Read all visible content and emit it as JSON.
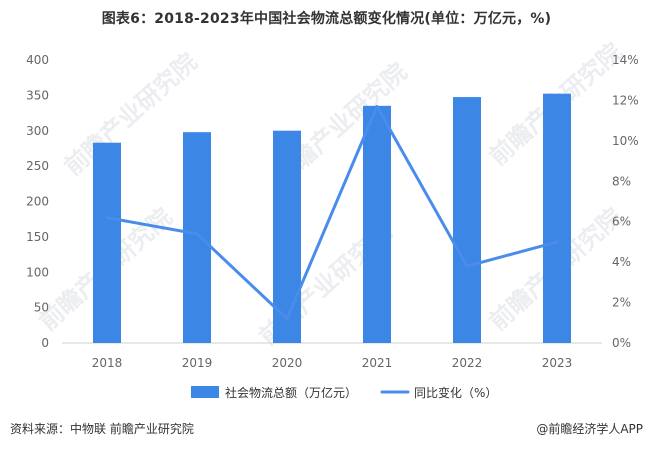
{
  "title": "图表6：2018-2023年中国社会物流总额变化情况(单位：万亿元，%)",
  "footer": {
    "source": "资料来源：中物联 前瞻产业研究院",
    "brand": "@前瞻经济学人APP"
  },
  "watermark": {
    "text": "前瞻产业研究院"
  },
  "colors": {
    "bar": "#3C86E6",
    "line": "#4A8CEB",
    "axis_text": "#666666",
    "axis_line": "#D0D0D0"
  },
  "chart_data": {
    "type": "bar",
    "title": "图表6：2018-2023年中国社会物流总额变化情况(单位：万亿元，%)",
    "categories": [
      "2018",
      "2019",
      "2020",
      "2021",
      "2022",
      "2023"
    ],
    "series": [
      {
        "name": "社会物流总额（万亿元）",
        "type": "bar",
        "axis": "left",
        "values": [
          283.1,
          298.0,
          300.1,
          335.2,
          347.6,
          352.4
        ]
      },
      {
        "name": "同比变化（%）",
        "type": "line",
        "axis": "right",
        "values": [
          6.2,
          5.4,
          1.2,
          11.7,
          3.8,
          5.0
        ]
      }
    ],
    "left_axis": {
      "ylim": [
        0,
        400
      ],
      "ticks": [
        "0",
        "50",
        "100",
        "150",
        "200",
        "250",
        "300",
        "350",
        "400"
      ]
    },
    "right_axis": {
      "ylim": [
        0,
        14
      ],
      "ticks": [
        "0%",
        "2%",
        "4%",
        "6%",
        "8%",
        "10%",
        "12%",
        "14%"
      ]
    },
    "legend": {
      "position": "bottom",
      "items": [
        "社会物流总额（万亿元）",
        "同比变化（%）"
      ]
    },
    "grid": false
  }
}
